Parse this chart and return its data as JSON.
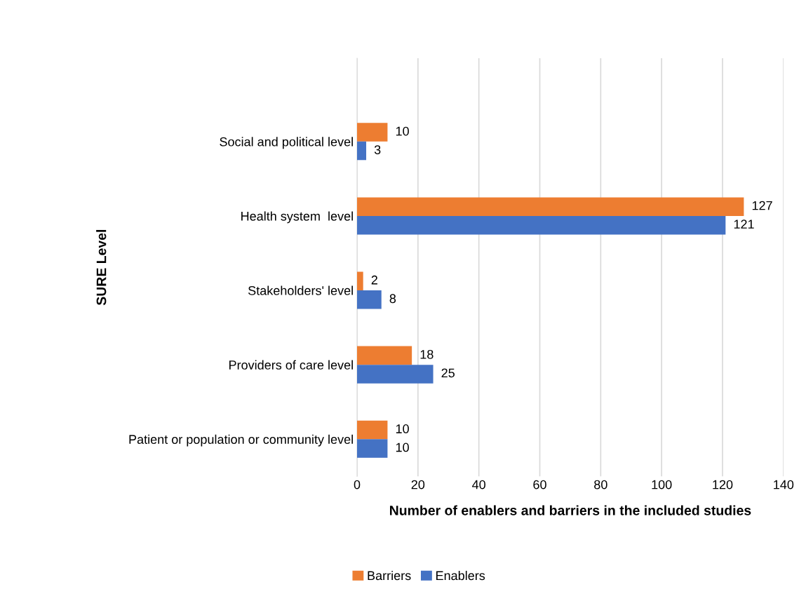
{
  "chart_data": {
    "type": "bar",
    "orientation": "horizontal",
    "categories": [
      "Social and political level",
      "Health system  level",
      "Stakeholders' level",
      "Providers of care level",
      "Patient or population or community level"
    ],
    "series": [
      {
        "name": "Barriers",
        "color": "#ed7d31",
        "values": [
          10,
          127,
          2,
          18,
          10
        ]
      },
      {
        "name": "Enablers",
        "color": "#4472c4",
        "values": [
          3,
          121,
          8,
          25,
          10
        ]
      }
    ],
    "xlabel": "Number of enablers and barriers in the included studies",
    "ylabel": "SURE Level",
    "xlim": [
      0,
      140
    ],
    "xticks": [
      0,
      20,
      40,
      60,
      80,
      100,
      120,
      140
    ],
    "grid": "x",
    "legend": "bottom",
    "data_labels": true
  }
}
